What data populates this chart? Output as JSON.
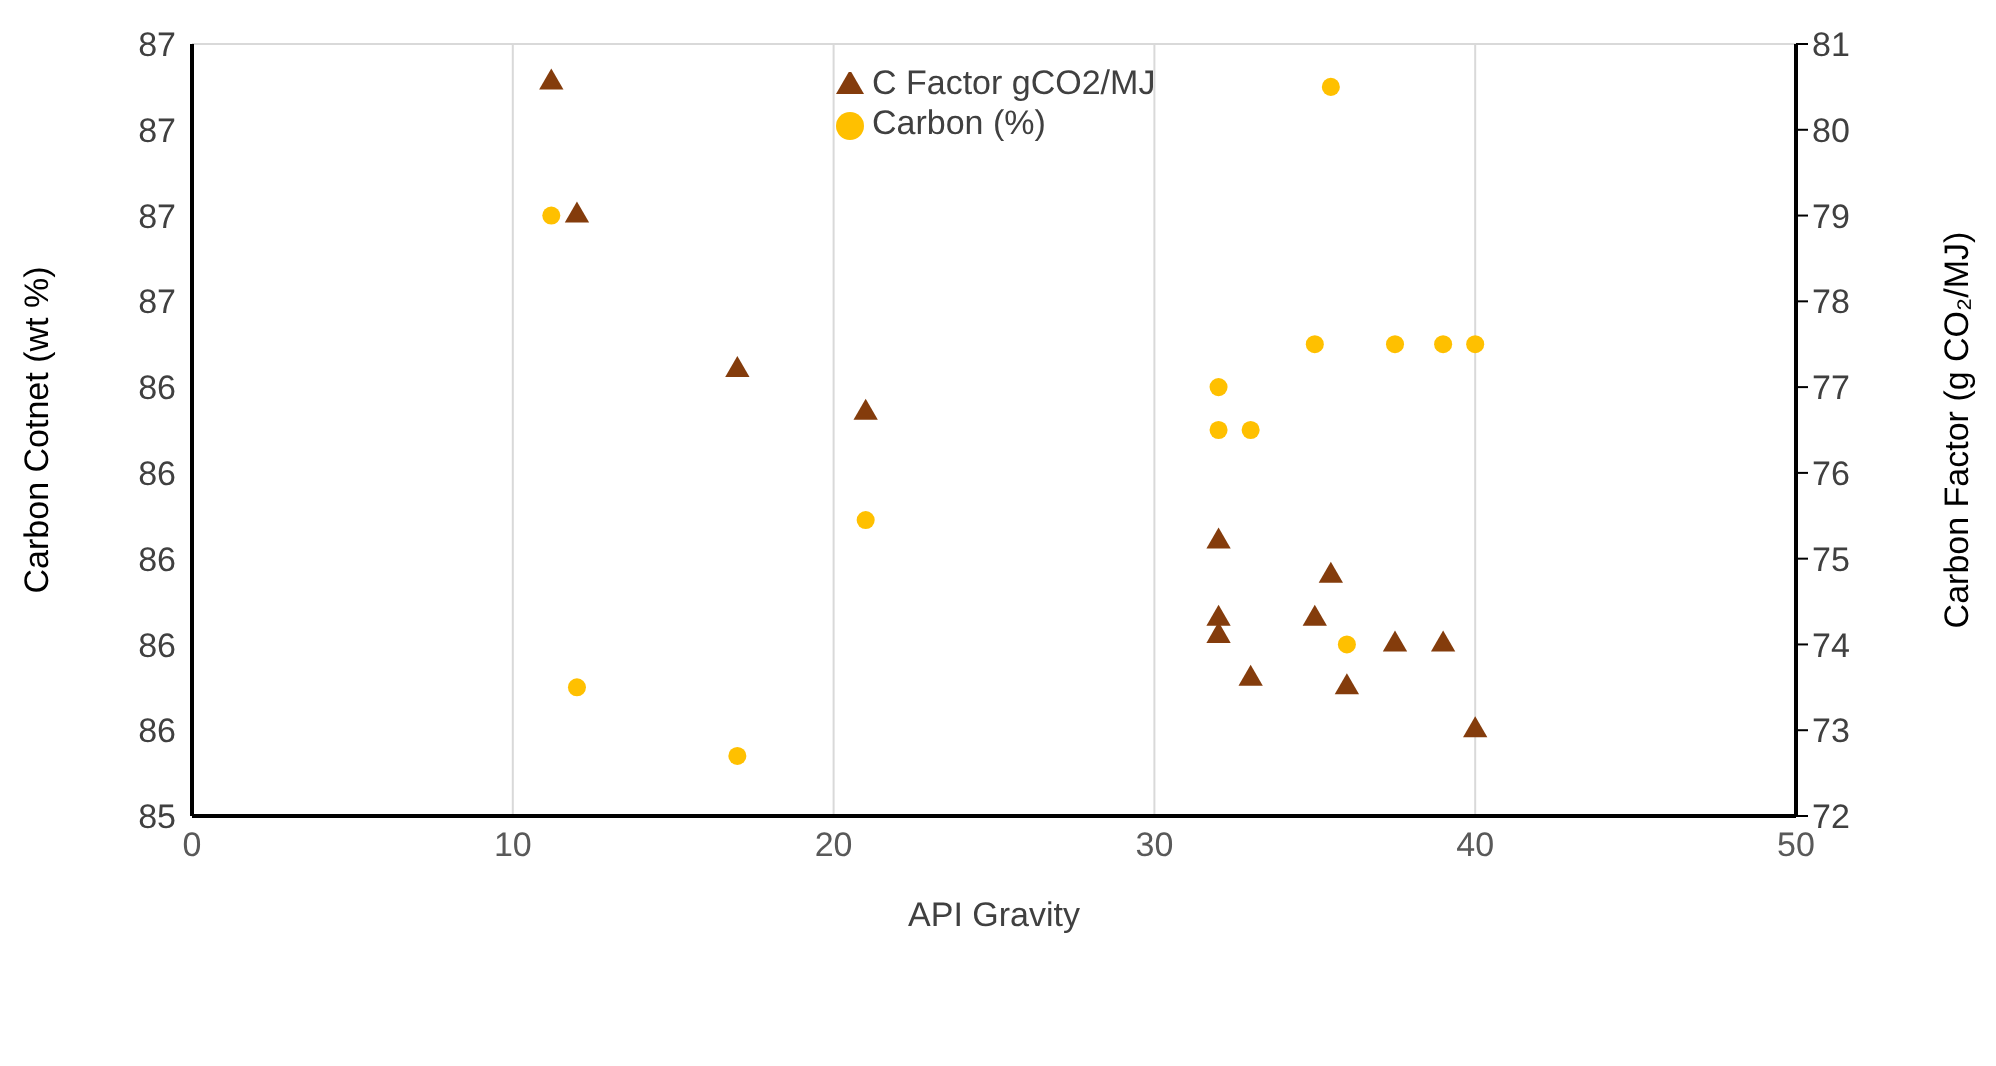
{
  "chart_data": {
    "type": "scatter",
    "xlabel": "API Gravity",
    "ylabel": "Carbon Cotnet (wt %)",
    "y2label": "Carbon Factor (g CO₂/MJ)",
    "xlim": [
      0,
      50
    ],
    "xticks": [
      0,
      10,
      20,
      30,
      40,
      50
    ],
    "ylim": [
      85.4,
      87.2
    ],
    "yticks": [
      {
        "value": 85.4,
        "label": "85"
      },
      {
        "value": 85.6,
        "label": "86"
      },
      {
        "value": 85.8,
        "label": "86"
      },
      {
        "value": 86.0,
        "label": "86"
      },
      {
        "value": 86.2,
        "label": "86"
      },
      {
        "value": 86.4,
        "label": "86"
      },
      {
        "value": 86.6,
        "label": "87"
      },
      {
        "value": 86.8,
        "label": "87"
      },
      {
        "value": 87.0,
        "label": "87"
      },
      {
        "value": 87.2,
        "label": "87"
      }
    ],
    "y2lim": [
      72,
      81
    ],
    "y2ticks": [
      72,
      73,
      74,
      75,
      76,
      77,
      78,
      79,
      80,
      81
    ],
    "grid": true,
    "legend": "top",
    "series": [
      {
        "name": "Carbon (%)",
        "color": "#ffc000",
        "marker": "circle",
        "x": [
          11.2,
          12,
          17,
          21,
          32,
          32,
          33,
          35,
          37.5,
          39,
          40,
          35.5,
          36
        ],
        "values": [
          86.8,
          85.7,
          85.54,
          86.09,
          86.4,
          86.3,
          86.3,
          86.5,
          86.5,
          86.5,
          86.5,
          87.1,
          85.8
        ]
      },
      {
        "name": "C Factor gCO2/MJ",
        "color": "#843c0c",
        "marker": "triangle",
        "axis": "y2",
        "x": [
          11.2,
          12,
          17,
          21,
          32,
          32,
          32,
          33,
          35,
          35.5,
          36,
          37.5,
          39,
          40
        ],
        "values": [
          80.55,
          79.0,
          77.2,
          76.7,
          75.2,
          74.3,
          74.1,
          73.6,
          74.3,
          74.8,
          73.5,
          74.0,
          74.0,
          73.0
        ]
      }
    ]
  }
}
